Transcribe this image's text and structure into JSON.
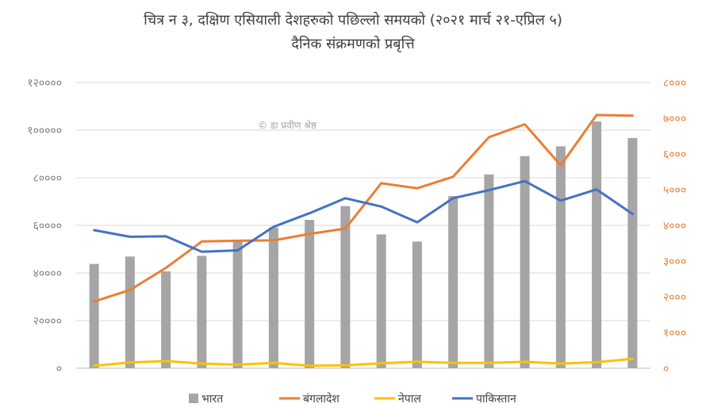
{
  "chart_data": {
    "type": "bar+line",
    "title_line1": "चित्र न ३, दक्षिण एसियाली देशहरुको पछिल्लो समयको (२०२१ मार्च २१-एप्रिल ५)",
    "title_line2": "दैनिक संक्रमणको प्रबृत्ति",
    "watermark": "© डा प्रवीण श्रेष्ठ",
    "n_points": 16,
    "y_left": {
      "range": [
        0,
        120000
      ],
      "ticks": [
        0,
        20000,
        40000,
        60000,
        80000,
        100000,
        120000
      ],
      "tick_labels": [
        "०",
        "२००००",
        "४००००",
        "६००००",
        "८००००",
        "१०००००",
        "१२००००"
      ],
      "color": "#7f7f7f"
    },
    "y_right": {
      "range": [
        0,
        8000
      ],
      "ticks": [
        0,
        1000,
        2000,
        3000,
        4000,
        5000,
        6000,
        7000,
        8000
      ],
      "tick_labels": [
        "०",
        "१०००",
        "२०००",
        "३०००",
        "४०००",
        "५०००",
        "६०००",
        "७०००",
        "८०००"
      ],
      "color": "#ed7d31"
    },
    "grid": true,
    "legend_position": "bottom",
    "series": [
      {
        "name": "भारत",
        "type": "bar",
        "axis": "left",
        "color": "#a5a5a5",
        "values": [
          43800,
          46900,
          40700,
          47200,
          53400,
          59100,
          62300,
          68100,
          56200,
          53200,
          72300,
          81400,
          89100,
          93200,
          103600,
          96700
        ]
      },
      {
        "name": "बंगलादेश",
        "type": "line",
        "axis": "right",
        "color": "#ed7d31",
        "values": [
          1870,
          2190,
          2810,
          3550,
          3570,
          3580,
          3760,
          3910,
          5180,
          5040,
          5360,
          6470,
          6830,
          5680,
          7090,
          7070
        ]
      },
      {
        "name": "नेपाल",
        "type": "line",
        "axis": "right",
        "color": "#ffc000",
        "values": [
          70,
          160,
          200,
          130,
          100,
          150,
          70,
          80,
          140,
          180,
          150,
          150,
          180,
          130,
          170,
          260
        ]
      },
      {
        "name": "पाकिस्तान",
        "type": "line",
        "axis": "left",
        "color": "#4472c4",
        "values": [
          58000,
          55200,
          55400,
          48900,
          49500,
          59400,
          65100,
          71400,
          67900,
          61300,
          71400,
          74800,
          78600,
          70400,
          75100,
          64800
        ]
      }
    ]
  }
}
